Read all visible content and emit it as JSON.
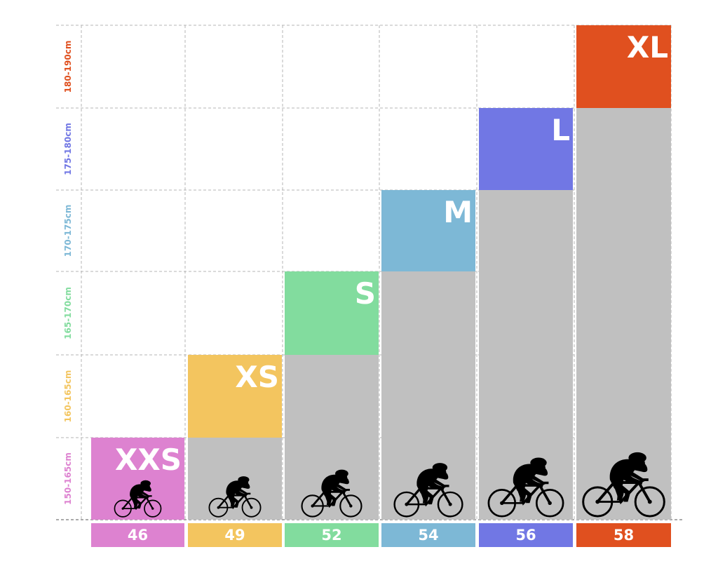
{
  "chart_data": {
    "type": "bar",
    "categories": [
      "46",
      "49",
      "52",
      "54",
      "56",
      "58"
    ],
    "height_ranges": [
      "150-165cm",
      "160-165cm",
      "165-170cm",
      "170-175cm",
      "175-180cm",
      "180-190cm"
    ],
    "sizes": [
      "XXS",
      "XS",
      "S",
      "M",
      "L",
      "XL"
    ],
    "values": [
      1,
      2,
      3,
      4,
      5,
      6
    ],
    "colors": [
      "#dd82d0",
      "#f3c55f",
      "#82dc9e",
      "#7db8d6",
      "#7177e4",
      "#e0501f"
    ],
    "fill_color": "#c0c0c0",
    "grid": true,
    "xlabel": "",
    "ylabel": ""
  }
}
